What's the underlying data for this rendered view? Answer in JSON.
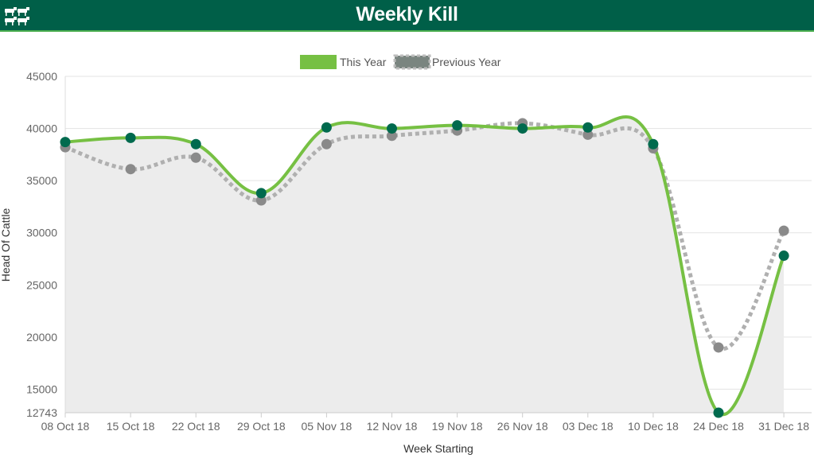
{
  "header": {
    "title": "Weekly Kill",
    "icon": "cattle-icon"
  },
  "colors": {
    "header_bg": "#005f48",
    "this_year_line": "#76c043",
    "this_year_marker": "#006a4e",
    "previous_year_line": "#b0b0b0",
    "previous_year_marker": "#8a8a8a",
    "area_fill": "#ececec"
  },
  "chart_data": {
    "type": "line",
    "xlabel": "Week Starting",
    "ylabel": "Head Of Cattle",
    "categories": [
      "08 Oct 18",
      "15 Oct 18",
      "22 Oct 18",
      "29 Oct 18",
      "05 Nov 18",
      "12 Nov 18",
      "19 Nov 18",
      "26 Nov 18",
      "03 Dec 18",
      "10 Dec 18",
      "24 Dec 18",
      "31 Dec 18"
    ],
    "ylim": [
      12743,
      45000
    ],
    "yticks": [
      12743,
      15000,
      20000,
      25000,
      30000,
      35000,
      40000,
      45000
    ],
    "legend_position": "top-center",
    "grid": true,
    "series": [
      {
        "name": "This Year",
        "values": [
          38700,
          39100,
          38500,
          33800,
          40100,
          40000,
          40300,
          40000,
          40100,
          38500,
          12743,
          27800
        ]
      },
      {
        "name": "Previous Year",
        "values": [
          38200,
          36100,
          37200,
          33100,
          38500,
          39300,
          39800,
          40500,
          39400,
          38100,
          19000,
          30200
        ]
      }
    ]
  }
}
